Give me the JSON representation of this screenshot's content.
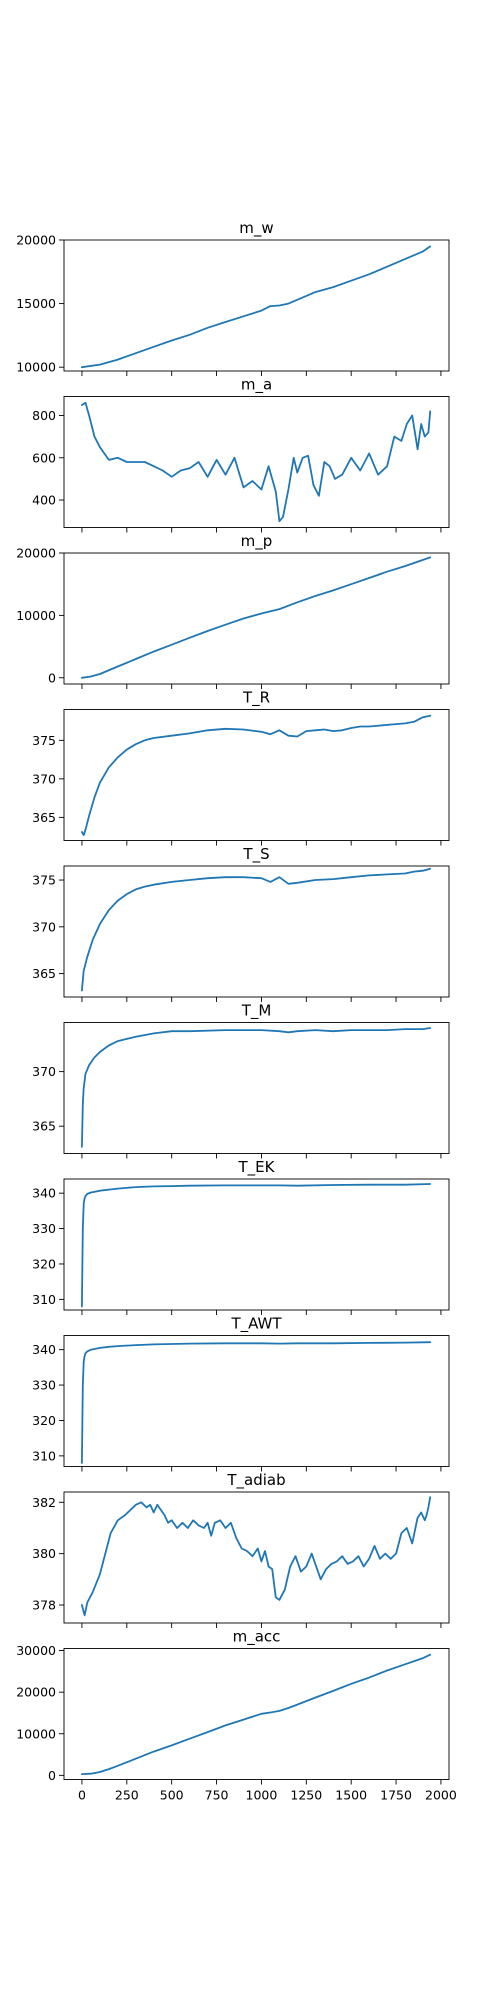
{
  "colors": {
    "line": "#1f77b4"
  },
  "chart_data": [
    {
      "type": "line",
      "title": "m_w",
      "ylim": [
        9700,
        20000
      ],
      "yticks": [
        10000,
        15000,
        20000
      ],
      "yticklabels": [
        "10000",
        "15000",
        "20000"
      ],
      "x": [
        0,
        100,
        200,
        300,
        400,
        500,
        600,
        700,
        800,
        900,
        1000,
        1050,
        1100,
        1150,
        1200,
        1300,
        1400,
        1500,
        1600,
        1700,
        1800,
        1900,
        1940
      ],
      "y": [
        10000,
        10200,
        10600,
        11100,
        11600,
        12100,
        12550,
        13100,
        13550,
        14000,
        14450,
        14800,
        14850,
        15000,
        15300,
        15900,
        16300,
        16800,
        17300,
        17900,
        18500,
        19100,
        19500
      ]
    },
    {
      "type": "line",
      "title": "m_a",
      "ylim": [
        270,
        890
      ],
      "yticks": [
        400,
        600,
        800
      ],
      "yticklabels": [
        "400",
        "600",
        "800"
      ],
      "x": [
        0,
        20,
        40,
        70,
        100,
        150,
        200,
        250,
        300,
        350,
        400,
        450,
        500,
        550,
        600,
        650,
        700,
        750,
        800,
        850,
        900,
        950,
        1000,
        1040,
        1080,
        1100,
        1120,
        1150,
        1180,
        1200,
        1230,
        1260,
        1290,
        1320,
        1350,
        1380,
        1410,
        1450,
        1500,
        1550,
        1600,
        1650,
        1700,
        1740,
        1780,
        1810,
        1840,
        1870,
        1890,
        1910,
        1930,
        1940
      ],
      "y": [
        850,
        860,
        800,
        700,
        650,
        590,
        600,
        580,
        580,
        580,
        560,
        540,
        510,
        540,
        550,
        580,
        510,
        590,
        520,
        600,
        460,
        490,
        450,
        560,
        440,
        300,
        320,
        450,
        600,
        530,
        600,
        610,
        470,
        420,
        580,
        560,
        500,
        520,
        600,
        540,
        620,
        520,
        560,
        700,
        680,
        760,
        800,
        640,
        760,
        700,
        720,
        820
      ]
    },
    {
      "type": "line",
      "title": "m_p",
      "ylim": [
        -1000,
        20000
      ],
      "yticks": [
        0,
        10000,
        20000
      ],
      "yticklabels": [
        "0",
        "10000",
        "20000"
      ],
      "x": [
        0,
        50,
        100,
        200,
        300,
        400,
        500,
        600,
        700,
        800,
        900,
        1000,
        1100,
        1200,
        1300,
        1400,
        1500,
        1600,
        1700,
        1800,
        1900,
        1940
      ],
      "y": [
        0,
        200,
        600,
        1800,
        3000,
        4200,
        5300,
        6400,
        7500,
        8500,
        9500,
        10300,
        11000,
        12100,
        13100,
        14000,
        15000,
        16000,
        17000,
        17900,
        18900,
        19300
      ]
    },
    {
      "type": "line",
      "title": "T_R",
      "ylim": [
        362,
        379
      ],
      "yticks": [
        365,
        370,
        375
      ],
      "yticklabels": [
        "365",
        "370",
        "375"
      ],
      "x": [
        0,
        10,
        20,
        40,
        70,
        100,
        150,
        200,
        250,
        300,
        350,
        400,
        500,
        600,
        700,
        800,
        900,
        1000,
        1050,
        1100,
        1150,
        1200,
        1250,
        1300,
        1350,
        1400,
        1450,
        1500,
        1550,
        1600,
        1700,
        1800,
        1850,
        1900,
        1940
      ],
      "y": [
        363.1,
        362.7,
        363.4,
        365.2,
        367.6,
        369.5,
        371.5,
        372.8,
        373.8,
        374.5,
        375.0,
        375.3,
        375.6,
        375.9,
        376.3,
        376.5,
        376.4,
        376.1,
        375.8,
        376.3,
        375.6,
        375.5,
        376.2,
        376.3,
        376.4,
        376.2,
        376.3,
        376.6,
        376.8,
        376.8,
        377.0,
        377.2,
        377.4,
        378.0,
        378.2
      ]
    },
    {
      "type": "line",
      "title": "T_S",
      "ylim": [
        362.5,
        376.5
      ],
      "yticks": [
        365,
        370,
        375
      ],
      "yticklabels": [
        "365",
        "370",
        "375"
      ],
      "x": [
        0,
        10,
        30,
        60,
        100,
        150,
        200,
        250,
        300,
        350,
        400,
        500,
        600,
        700,
        800,
        900,
        1000,
        1050,
        1100,
        1150,
        1200,
        1300,
        1400,
        1500,
        1600,
        1700,
        1800,
        1850,
        1900,
        1940
      ],
      "y": [
        363.2,
        365.3,
        366.8,
        368.6,
        370.3,
        371.8,
        372.8,
        373.5,
        374.0,
        374.3,
        374.5,
        374.8,
        375.0,
        375.2,
        375.3,
        375.3,
        375.2,
        374.8,
        375.3,
        374.6,
        374.7,
        375.0,
        375.1,
        375.3,
        375.5,
        375.6,
        375.7,
        375.9,
        376.0,
        376.2
      ]
    },
    {
      "type": "line",
      "title": "T_M",
      "ylim": [
        362.5,
        374.5
      ],
      "yticks": [
        365,
        370
      ],
      "yticklabels": [
        "365",
        "370"
      ],
      "x": [
        0,
        5,
        10,
        20,
        40,
        70,
        100,
        150,
        200,
        300,
        400,
        500,
        600,
        800,
        1000,
        1100,
        1150,
        1200,
        1300,
        1400,
        1500,
        1600,
        1700,
        1800,
        1900,
        1940
      ],
      "y": [
        363.1,
        367.0,
        368.5,
        369.8,
        370.6,
        371.3,
        371.8,
        372.4,
        372.8,
        373.2,
        373.5,
        373.7,
        373.7,
        373.8,
        373.8,
        373.7,
        373.6,
        373.7,
        373.8,
        373.7,
        373.8,
        373.8,
        373.8,
        373.9,
        373.9,
        374.0
      ]
    },
    {
      "type": "line",
      "title": "T_EK",
      "ylim": [
        307,
        344
      ],
      "yticks": [
        310,
        320,
        330,
        340
      ],
      "yticklabels": [
        "310",
        "320",
        "330",
        "340"
      ],
      "x": [
        0,
        5,
        10,
        15,
        20,
        30,
        50,
        100,
        150,
        200,
        300,
        400,
        500,
        600,
        800,
        1000,
        1100,
        1200,
        1400,
        1600,
        1800,
        1940
      ],
      "y": [
        308,
        330,
        337,
        338.5,
        339.2,
        339.8,
        340.2,
        340.7,
        341.0,
        341.3,
        341.7,
        341.9,
        342.0,
        342.1,
        342.2,
        342.2,
        342.2,
        342.1,
        342.3,
        342.4,
        342.4,
        342.6
      ]
    },
    {
      "type": "line",
      "title": "T_AWT",
      "ylim": [
        307,
        344
      ],
      "yticks": [
        310,
        320,
        330,
        340
      ],
      "yticklabels": [
        "310",
        "320",
        "330",
        "340"
      ],
      "x": [
        0,
        5,
        10,
        15,
        20,
        30,
        50,
        100,
        150,
        200,
        300,
        400,
        500,
        600,
        800,
        1000,
        1100,
        1200,
        1400,
        1600,
        1800,
        1940
      ],
      "y": [
        308,
        330,
        336.5,
        338.2,
        339.0,
        339.5,
        340.0,
        340.5,
        340.8,
        341.0,
        341.3,
        341.5,
        341.6,
        341.7,
        341.8,
        341.8,
        341.7,
        341.8,
        341.8,
        341.9,
        342.0,
        342.1
      ]
    },
    {
      "type": "line",
      "title": "T_adiab",
      "ylim": [
        377.3,
        382.4
      ],
      "yticks": [
        378,
        380,
        382
      ],
      "yticklabels": [
        "378",
        "380",
        "382"
      ],
      "x": [
        0,
        15,
        30,
        60,
        100,
        130,
        160,
        200,
        240,
        270,
        300,
        330,
        360,
        380,
        400,
        420,
        440,
        460,
        480,
        500,
        530,
        560,
        590,
        620,
        650,
        680,
        700,
        720,
        740,
        770,
        800,
        830,
        860,
        890,
        920,
        950,
        980,
        1000,
        1020,
        1040,
        1060,
        1080,
        1100,
        1130,
        1160,
        1190,
        1220,
        1250,
        1280,
        1310,
        1330,
        1360,
        1390,
        1420,
        1450,
        1480,
        1510,
        1540,
        1570,
        1600,
        1630,
        1660,
        1690,
        1720,
        1750,
        1780,
        1810,
        1840,
        1870,
        1890,
        1910,
        1920,
        1930,
        1940
      ],
      "y": [
        378.0,
        377.6,
        378.1,
        378.5,
        379.2,
        380.0,
        380.8,
        381.3,
        381.5,
        381.7,
        381.9,
        382.0,
        381.8,
        381.9,
        381.6,
        381.9,
        381.7,
        381.5,
        381.2,
        381.3,
        381.0,
        381.2,
        381.0,
        381.3,
        381.1,
        381.0,
        381.2,
        380.7,
        381.2,
        381.3,
        381.0,
        381.2,
        380.6,
        380.2,
        380.1,
        379.9,
        380.2,
        379.7,
        380.1,
        379.5,
        379.4,
        378.3,
        378.2,
        378.6,
        379.5,
        379.9,
        379.3,
        379.5,
        380.0,
        379.4,
        379.0,
        379.4,
        379.6,
        379.7,
        379.9,
        379.6,
        379.7,
        379.9,
        379.5,
        379.8,
        380.3,
        379.8,
        380.0,
        379.8,
        380.0,
        380.8,
        381.0,
        380.4,
        381.4,
        381.6,
        381.3,
        381.5,
        381.8,
        382.2
      ]
    },
    {
      "type": "line",
      "title": "m_acc",
      "ylim": [
        -1000,
        30500
      ],
      "yticks": [
        0,
        10000,
        20000,
        30000
      ],
      "yticklabels": [
        "0",
        "10000",
        "20000",
        "30000"
      ],
      "xticks": [
        0,
        250,
        500,
        750,
        1000,
        1250,
        1500,
        1750,
        2000
      ],
      "xticklabels": [
        "0",
        "250",
        "500",
        "750",
        "1000",
        "1250",
        "1500",
        "1750",
        "2000"
      ],
      "x": [
        0,
        50,
        100,
        150,
        200,
        300,
        400,
        500,
        600,
        700,
        800,
        900,
        1000,
        1050,
        1100,
        1150,
        1200,
        1300,
        1400,
        1500,
        1600,
        1700,
        1800,
        1900,
        1940
      ],
      "y": [
        300,
        400,
        800,
        1500,
        2300,
        4000,
        5700,
        7200,
        8800,
        10400,
        12000,
        13400,
        14800,
        15100,
        15500,
        16200,
        17000,
        18700,
        20300,
        22000,
        23500,
        25200,
        26700,
        28200,
        29000
      ]
    }
  ]
}
